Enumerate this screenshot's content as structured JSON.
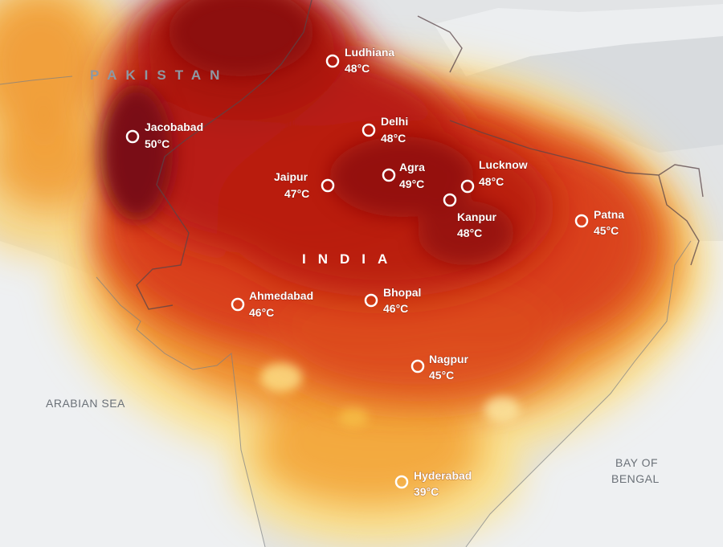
{
  "labels": {
    "pakistan": "PAKISTAN",
    "india": "INDIA",
    "arabian_sea": "ARABIAN SEA",
    "bay_line1": "BAY OF",
    "bay_line2": "BENGAL"
  },
  "cities": [
    {
      "name": "Ludhiana",
      "temp": "48°C"
    },
    {
      "name": "Jacobabad",
      "temp": "50°C"
    },
    {
      "name": "Delhi",
      "temp": "48°C"
    },
    {
      "name": "Jaipur",
      "temp": "47°C"
    },
    {
      "name": "Agra",
      "temp": "49°C"
    },
    {
      "name": "Lucknow",
      "temp": "48°C"
    },
    {
      "name": "Kanpur",
      "temp": "48°C"
    },
    {
      "name": "Patna",
      "temp": "45°C"
    },
    {
      "name": "Ahmedabad",
      "temp": "46°C"
    },
    {
      "name": "Bhopal",
      "temp": "46°C"
    },
    {
      "name": "Nagpur",
      "temp": "45°C"
    },
    {
      "name": "Hyderabad",
      "temp": "39°C"
    }
  ],
  "colors": {
    "sea": "#eef0f2",
    "land": "#e4e6e8",
    "heat_extreme": "#7a0f12",
    "heat_very_high": "#b81a12",
    "heat_high": "#d9401a",
    "heat_mid": "#ee8a28",
    "heat_low": "#f7c34a",
    "heat_lowest": "#fde28a",
    "marker": "#ffffff"
  }
}
